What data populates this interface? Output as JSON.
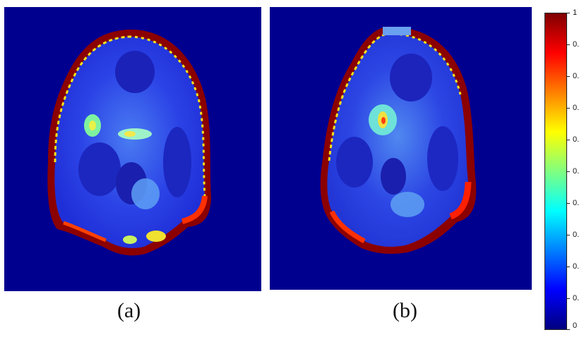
{
  "panels": [
    {
      "id": "a",
      "caption": "(a)"
    },
    {
      "id": "b",
      "caption": "(b)"
    }
  ],
  "colorbar": {
    "colors": [
      "#00007f",
      "#0000ff",
      "#0080ff",
      "#00ffff",
      "#80ff80",
      "#ffff00",
      "#ff8000",
      "#ff0000",
      "#7f0000"
    ],
    "tick_labels": [
      "1",
      "0.",
      "0.",
      "0.",
      "0.",
      "0.",
      "0.",
      "0.",
      "0.",
      "0.",
      "0"
    ]
  },
  "colors": {
    "background": "#00008f",
    "tissue_base": "#2a3fe0",
    "rim_hot": "#8b0000"
  }
}
